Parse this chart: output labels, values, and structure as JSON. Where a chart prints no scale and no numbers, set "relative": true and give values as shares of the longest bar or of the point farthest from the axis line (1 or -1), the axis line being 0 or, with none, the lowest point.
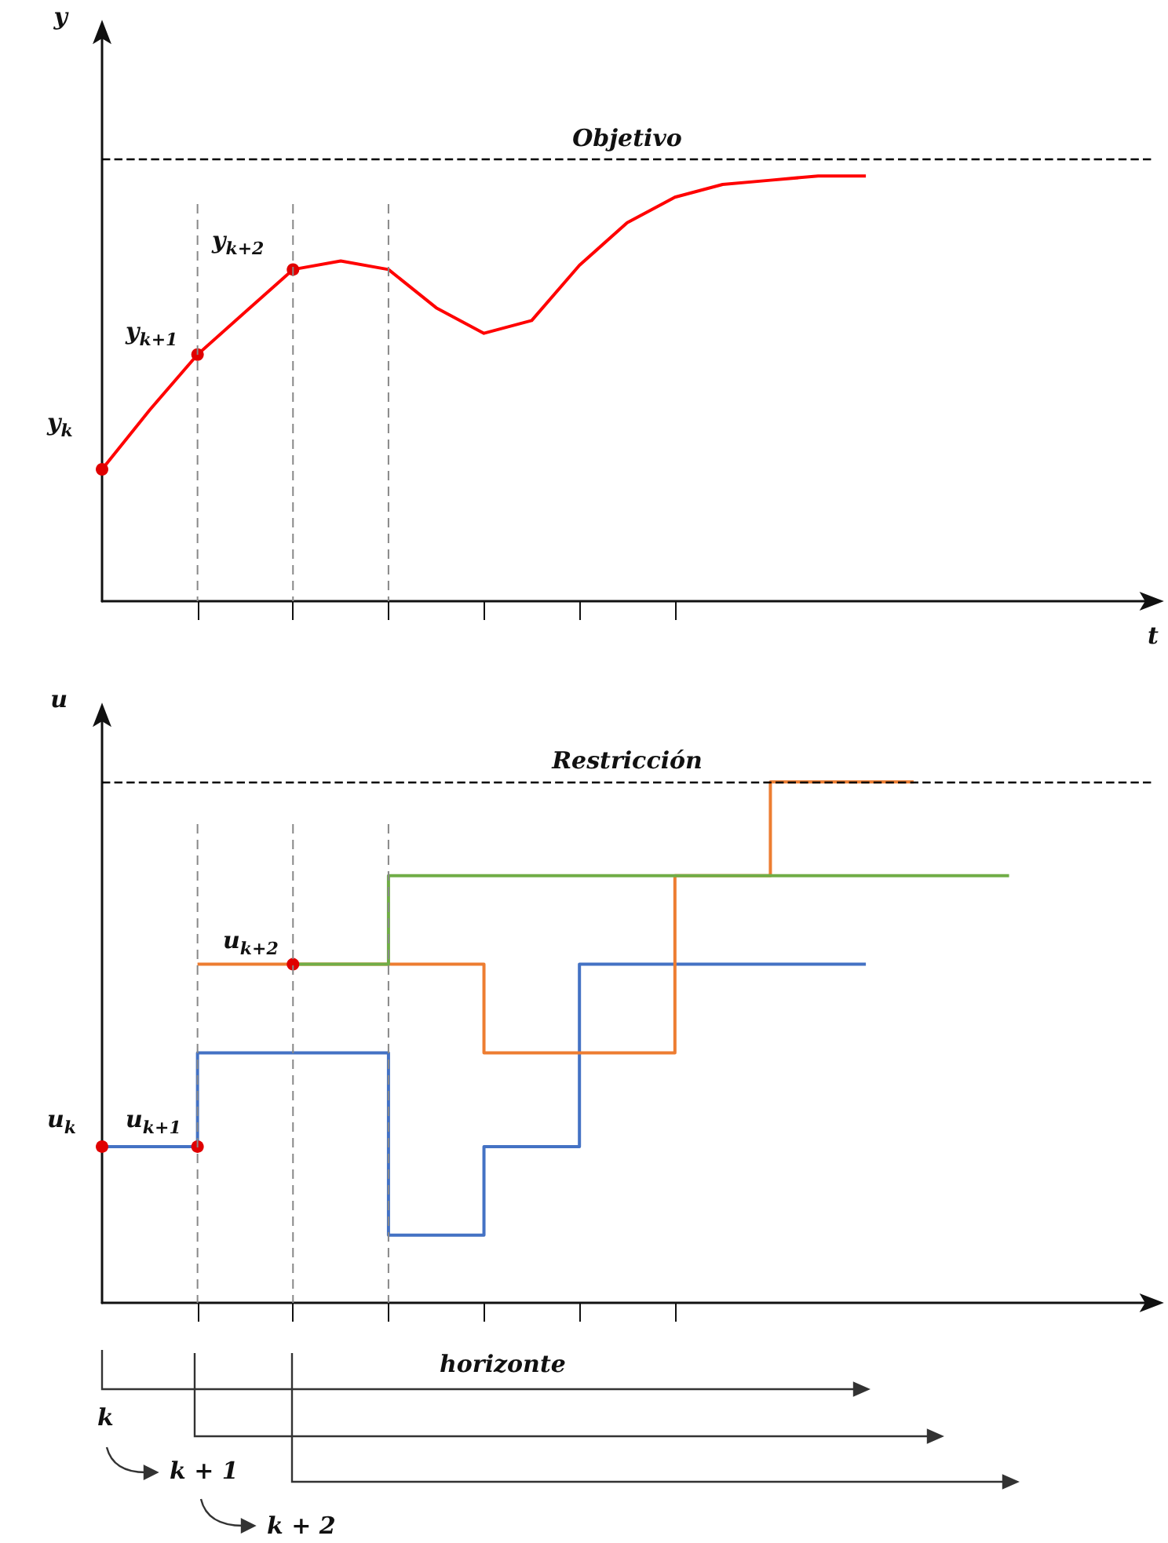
{
  "chart_data": [
    {
      "type": "line",
      "relative": true,
      "ylabel": "y",
      "xlabel": "t",
      "grid": "x",
      "categories": [
        null,
        null,
        null,
        null,
        null,
        null,
        null,
        null,
        null,
        null,
        null,
        null,
        null,
        null,
        null,
        null,
        null,
        null,
        null,
        null,
        null,
        null,
        null
      ],
      "series": [
        {
          "color": "#ff0000",
          "values": [
            0.31,
            0.45,
            0.58,
            0.68,
            0.78,
            0.8,
            0.78,
            0.69,
            0.63,
            0.66,
            0.79,
            0.89,
            0.95,
            0.98,
            0.99,
            1.0,
            1.0,
            null,
            null,
            null,
            null,
            null,
            null
          ]
        }
      ],
      "ref_lines": [
        {
          "axis": "y",
          "value": 1.04,
          "label": "Objetivo",
          "color": "#000000",
          "line_style": "dashed"
        }
      ],
      "annotations": [
        "y$_{k}$",
        "y$_{k+1}$",
        "y$_{k+2}$"
      ]
    },
    {
      "type": "step",
      "relative": true,
      "ylabel": "u",
      "grid": "x",
      "categories": [
        null,
        null,
        null,
        null,
        null,
        null,
        null,
        null,
        null,
        null,
        null,
        null,
        null,
        null,
        null,
        null,
        null,
        null,
        null,
        null,
        null,
        null,
        null
      ],
      "series": [
        {
          "color": "#4472c4",
          "values": [
            0.3,
            0.3,
            0.3,
            0.48,
            0.48,
            0.48,
            0.48,
            0.13,
            0.13,
            0.3,
            0.3,
            0.65,
            0.65,
            0.65,
            0.65,
            0.65,
            0.65,
            null,
            null,
            null,
            null,
            null,
            null
          ]
        },
        {
          "color": "#ed7d31",
          "values": [
            null,
            null,
            0.65,
            0.65,
            0.65,
            0.65,
            0.65,
            0.65,
            0.65,
            0.48,
            0.48,
            0.48,
            0.48,
            0.82,
            0.82,
            1.0,
            1.0,
            1.0,
            null,
            null,
            null,
            null,
            null
          ]
        },
        {
          "color": "#70ad47",
          "values": [
            null,
            null,
            null,
            null,
            0.65,
            0.65,
            0.65,
            0.82,
            0.82,
            0.82,
            0.82,
            0.82,
            0.82,
            0.82,
            0.82,
            0.82,
            0.82,
            0.82,
            0.82,
            0.82,
            null,
            null,
            null
          ]
        }
      ],
      "ref_lines": [
        {
          "axis": "y",
          "value": 1.0,
          "label": "Restricción",
          "color": "#000000",
          "line_style": "dashed"
        }
      ],
      "annotations": [
        "u$_{k}$",
        "u$_{k+1}$",
        "u$_{k+2}$",
        "horizonte",
        "k",
        "k + 1",
        "k + 2"
      ]
    }
  ]
}
